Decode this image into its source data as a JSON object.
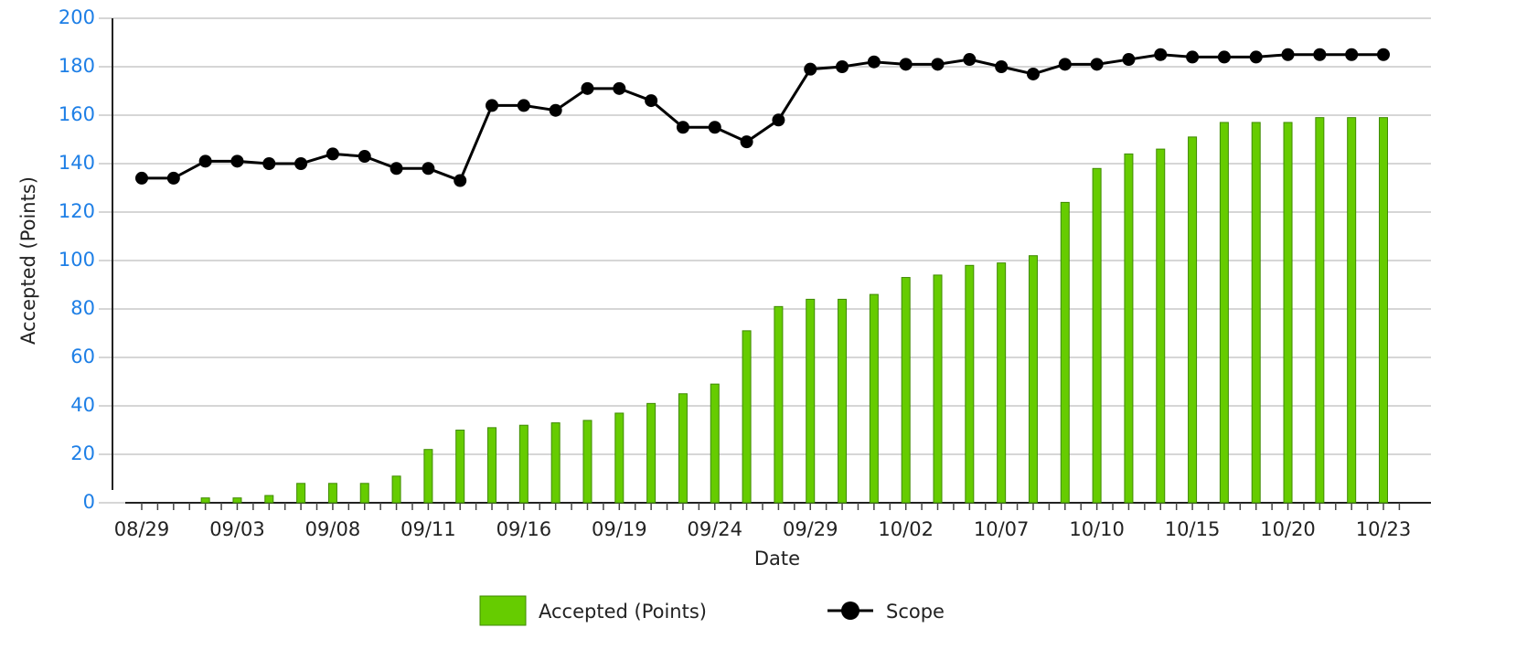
{
  "chart_data": {
    "type": "bar",
    "xlabel": "Date",
    "ylabel": "Accepted (Points)",
    "categories": [
      "08/29",
      null,
      null,
      "09/03",
      null,
      null,
      "09/08",
      null,
      null,
      "09/11",
      null,
      null,
      "09/16",
      null,
      null,
      "09/19",
      null,
      null,
      "09/24",
      null,
      null,
      "09/29",
      null,
      null,
      "10/02",
      null,
      null,
      "10/07",
      null,
      null,
      "10/10",
      null,
      null,
      "10/15",
      null,
      null,
      "10/20",
      null,
      null,
      "10/23"
    ],
    "series": [
      {
        "name": "Accepted (Points)",
        "type": "bar",
        "color": "#66cc00",
        "values": [
          0,
          0,
          2,
          2,
          3,
          8,
          8,
          8,
          11,
          22,
          30,
          31,
          32,
          33,
          34,
          37,
          41,
          45,
          49,
          71,
          81,
          84,
          84,
          86,
          93,
          94,
          98,
          99,
          102,
          124,
          138,
          144,
          146,
          151,
          157,
          157,
          157,
          159,
          159,
          159
        ]
      },
      {
        "name": "Scope",
        "type": "line",
        "color": "#000000",
        "values": [
          134,
          134,
          141,
          141,
          140,
          140,
          144,
          143,
          138,
          138,
          133,
          164,
          164,
          162,
          171,
          171,
          166,
          155,
          155,
          149,
          158,
          179,
          180,
          182,
          181,
          181,
          183,
          180,
          177,
          181,
          181,
          183,
          185,
          184,
          184,
          184,
          185,
          185,
          185,
          185
        ]
      }
    ],
    "ylim": [
      0,
      200
    ],
    "yticks": [
      0,
      20,
      40,
      60,
      80,
      100,
      120,
      140,
      160,
      180,
      200
    ],
    "grid": true,
    "legend": "bottom"
  }
}
